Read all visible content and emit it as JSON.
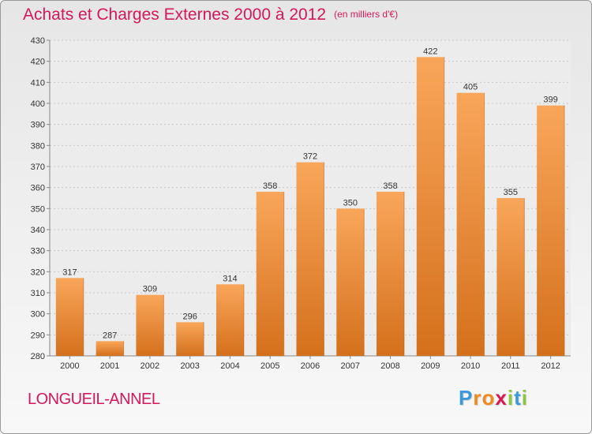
{
  "chart_data": {
    "type": "bar",
    "title": "Achats et Charges Externes 2000 à 2012",
    "unit": "(en milliers d'€)",
    "categories": [
      "2000",
      "2001",
      "2002",
      "2003",
      "2004",
      "2005",
      "2006",
      "2007",
      "2008",
      "2009",
      "2010",
      "2011",
      "2012"
    ],
    "values": [
      317,
      287,
      309,
      296,
      314,
      358,
      372,
      350,
      358,
      422,
      405,
      355,
      399
    ],
    "ylim": [
      280,
      430
    ],
    "yticks": [
      280,
      290,
      300,
      310,
      320,
      330,
      340,
      350,
      360,
      370,
      380,
      390,
      400,
      410,
      420,
      430
    ],
    "grid": true,
    "xlabel": "",
    "ylabel": ""
  },
  "location": "LONGUEIL-ANNEL",
  "brand": {
    "letters": [
      "P",
      "r",
      "o",
      "x",
      "i",
      "t",
      "i"
    ],
    "colors": [
      "#3a9ad9",
      "#f08a1c",
      "#f08a1c",
      "#d9184f",
      "#8cc63f",
      "#3a9ad9",
      "#8cc63f"
    ]
  },
  "colors": {
    "bar_top": "#f9a65a",
    "bar_bottom": "#d4701c",
    "title": "#d3185b"
  }
}
